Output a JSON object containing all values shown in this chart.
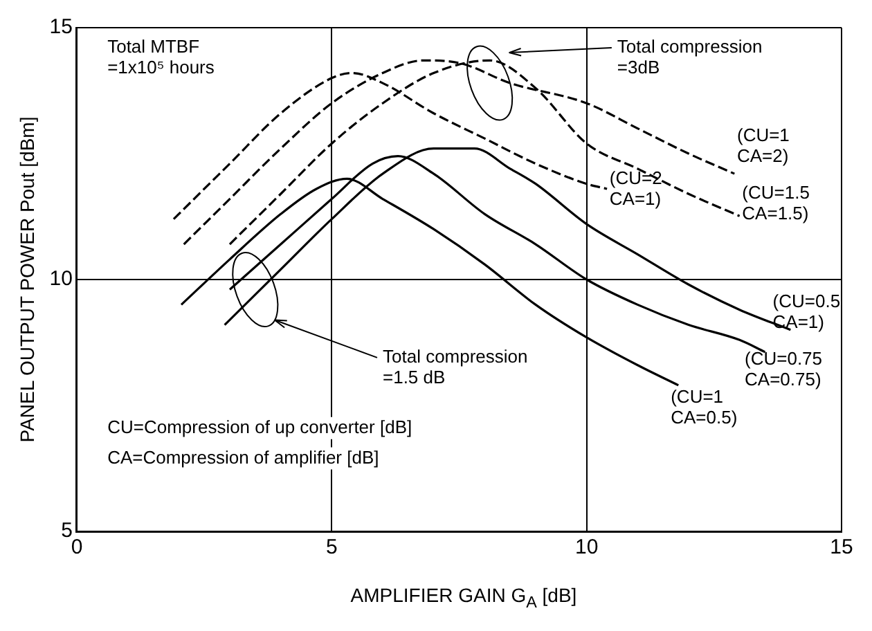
{
  "chart_data": {
    "type": "line",
    "xlabel": "AMPLIFIER GAIN G$_{A}$ [dB]",
    "ylabel": "PANEL OUTPUT POWER Pout [dBm]",
    "xlim": [
      0,
      15
    ],
    "xticks": [
      0,
      5,
      10,
      15
    ],
    "ylim": [
      5,
      15
    ],
    "yticks": [
      5,
      10,
      15
    ],
    "grid": true,
    "legend": false,
    "marker": "none",
    "series": [
      {
        "color": "#000000",
        "line_style": "dashed",
        "x": [
          1.9,
          3,
          4,
          5,
          5.4,
          6,
          7,
          8,
          9,
          10,
          10.4
        ],
        "values": [
          11.2,
          12.3,
          13.3,
          14.0,
          14.1,
          13.9,
          13.3,
          12.8,
          12.3,
          11.9,
          11.8
        ]
      },
      {
        "color": "#000000",
        "line_style": "dashed",
        "x": [
          2.1,
          3,
          4,
          5,
          6,
          6.8,
          7.5,
          8.5,
          10,
          11,
          12,
          12.9
        ],
        "values": [
          10.7,
          11.6,
          12.6,
          13.5,
          14.1,
          14.35,
          14.3,
          13.9,
          13.5,
          13.0,
          12.5,
          12.1
        ]
      },
      {
        "color": "#000000",
        "line_style": "dashed",
        "x": [
          3,
          4,
          5,
          6,
          7,
          8.1,
          9,
          10,
          11,
          12,
          13
        ],
        "values": [
          10.7,
          11.7,
          12.7,
          13.5,
          14.1,
          14.35,
          13.8,
          12.7,
          12.2,
          11.7,
          11.26
        ]
      },
      {
        "color": "#000000",
        "line_style": "solid",
        "x": [
          2.05,
          3,
          4,
          4.7,
          5.3,
          6,
          7,
          8,
          9,
          10,
          11,
          11.8
        ],
        "values": [
          9.5,
          10.4,
          11.3,
          11.8,
          12.0,
          11.6,
          11.0,
          10.3,
          9.5,
          8.85,
          8.3,
          7.9
        ]
      },
      {
        "color": "#000000",
        "line_style": "solid",
        "x": [
          3,
          4,
          5,
          5.8,
          6.3,
          7,
          8,
          9,
          10,
          11,
          12,
          13,
          13.5
        ],
        "values": [
          9.8,
          10.7,
          11.6,
          12.3,
          12.45,
          12.1,
          11.3,
          10.7,
          10.0,
          9.5,
          9.1,
          8.8,
          8.56
        ]
      },
      {
        "color": "#000000",
        "line_style": "solid",
        "x": [
          2.9,
          4,
          5,
          6,
          7,
          7.8,
          8.5,
          9,
          10,
          11,
          12,
          13,
          14
        ],
        "values": [
          9.1,
          10.2,
          11.2,
          12.1,
          12.6,
          12.6,
          12.2,
          11.9,
          11.1,
          10.5,
          9.9,
          9.4,
          9.0
        ]
      }
    ],
    "annotations": [
      "Total MTBF\n=1x10⁵ hours",
      "Total compression\n=3dB",
      "Total compression\n=1.5 dB",
      "CU=Compression of up converter [dB]",
      "CA=Compression of amplifier [dB]",
      {
        "text": "(CU=1\nCA=2)",
        "x": 12.9,
        "y": 12.1
      },
      {
        "text": "(CU=1.5\nCA=1.5)",
        "x": 13,
        "y": 11.26
      },
      {
        "text": "(CU=2\nCA=1)",
        "x": 10.4,
        "y": 11.8
      },
      {
        "text": "(CU=0.5\nCA=1)",
        "x": 14,
        "y": 9.0
      },
      {
        "text": "(CU=0.75\nCA=0.75)",
        "x": 13.5,
        "y": 8.56
      },
      {
        "text": "(CU=1\nCA=0.5)",
        "x": 11.8,
        "y": 7.9
      }
    ]
  }
}
